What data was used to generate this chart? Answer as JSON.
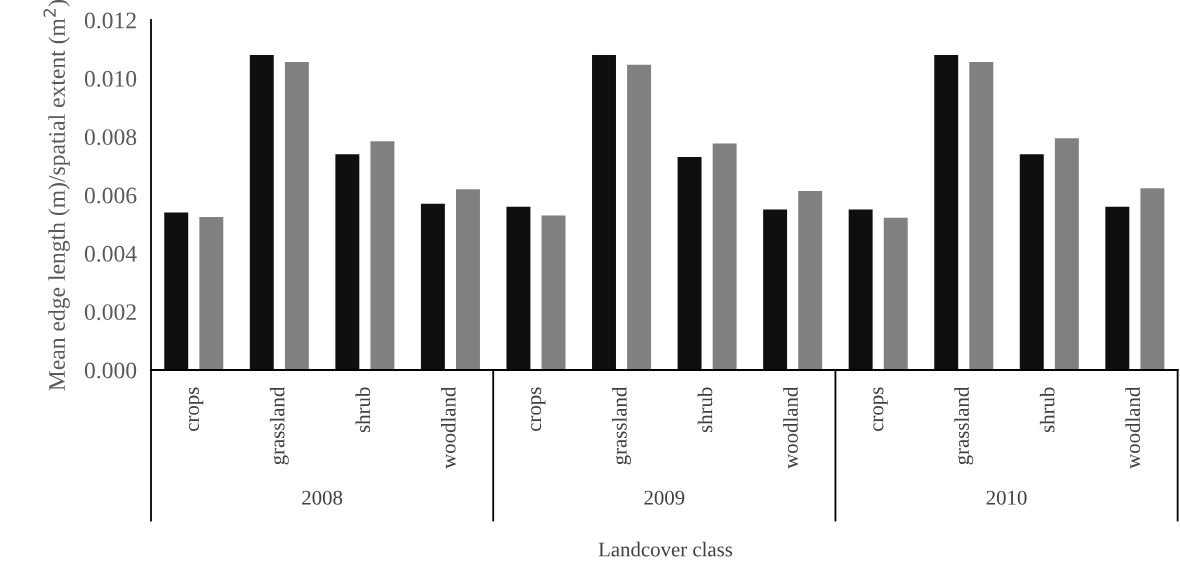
{
  "chart_data": {
    "type": "bar",
    "ylabel": "Mean edge length (m)/spatial extent (m$^{2}$)",
    "xlabel": "Landcover class",
    "categories": [
      "crops",
      "grassland",
      "shrub",
      "woodland",
      "crops",
      "grassland",
      "shrub",
      "woodland",
      "crops",
      "grassland",
      "shrub",
      "woodland"
    ],
    "annotations": [
      "2008",
      "2009",
      "2010"
    ],
    "series": [
      {
        "color": "#0f0f0f",
        "values": [
          0.0054,
          0.0108,
          0.0074,
          0.0057,
          0.0056,
          0.0108,
          0.0073,
          0.0055,
          0.0055,
          0.0108,
          0.0074,
          0.0056
        ]
      },
      {
        "color": "#808080",
        "values": [
          0.00525,
          0.01056,
          0.00784,
          0.0062,
          0.0053,
          0.01047,
          0.00777,
          0.00614,
          0.00522,
          0.01056,
          0.00795,
          0.00623
        ]
      }
    ],
    "ylim": [
      0,
      0.012
    ],
    "yticks": [
      {
        "value": 0,
        "label": "0.000"
      },
      {
        "value": 0.002,
        "label": "0.002"
      },
      {
        "value": 0.004,
        "label": "0.004"
      },
      {
        "value": 0.006,
        "label": "0.006"
      },
      {
        "value": 0.008,
        "label": "0.008"
      },
      {
        "value": 0.01,
        "label": "0.010"
      },
      {
        "value": 0.012,
        "label": "0.012"
      }
    ],
    "grid": false,
    "legend": false
  }
}
